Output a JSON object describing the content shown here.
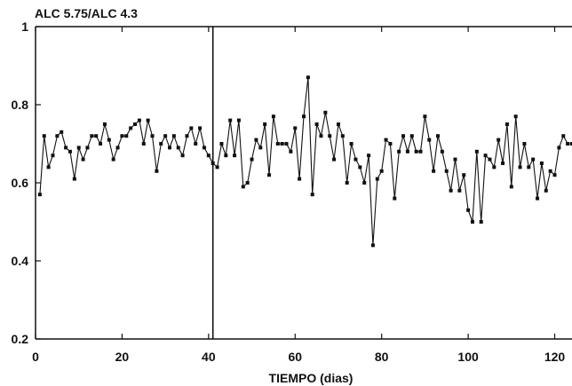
{
  "chart_data": {
    "type": "line",
    "title": "ALC 5.75/ALC 4.3",
    "xlabel": "TIEMPO (dias)",
    "ylabel": "",
    "xlim": [
      0,
      124
    ],
    "ylim": [
      0.2,
      1.0
    ],
    "xticks": [
      0,
      20,
      40,
      60,
      80,
      100,
      120
    ],
    "xtick_labels": [
      "0",
      "20",
      "40",
      "60",
      "80",
      "100",
      "120"
    ],
    "yticks": [
      0.2,
      0.4,
      0.6,
      0.8,
      1.0
    ],
    "ytick_labels": [
      "0.2",
      "0.4",
      "0.6",
      "0.8",
      "1"
    ],
    "vertical_line_x": 41,
    "grid": false,
    "line_color": "#111111",
    "series": [
      {
        "x": [
          1,
          2,
          3,
          4,
          5,
          6,
          7,
          8,
          9,
          10,
          11,
          12,
          13,
          14,
          15,
          16,
          17,
          18,
          19,
          20,
          21,
          22,
          23,
          24,
          25,
          26,
          27,
          28,
          29,
          30,
          31,
          32,
          33,
          34,
          35,
          36,
          37,
          38,
          39,
          40,
          41,
          42,
          43,
          44,
          45,
          46,
          47,
          48,
          49,
          50,
          51,
          52,
          53,
          54,
          55,
          56,
          57,
          58,
          59,
          60,
          61,
          62,
          63,
          64,
          65,
          66,
          67,
          68,
          69,
          70,
          71,
          72,
          73,
          74,
          75,
          76,
          77,
          78,
          79,
          80,
          81,
          82,
          83,
          84,
          85,
          86,
          87,
          88,
          89,
          90,
          91,
          92,
          93,
          94,
          95,
          96,
          97,
          98,
          99,
          100,
          101,
          102,
          103,
          104,
          105,
          106,
          107,
          108,
          109,
          110,
          111,
          112,
          113,
          114,
          115,
          116,
          117,
          118,
          119,
          120,
          121,
          122,
          123,
          124
        ],
        "y": [
          0.57,
          0.72,
          0.64,
          0.67,
          0.72,
          0.73,
          0.69,
          0.68,
          0.61,
          0.69,
          0.66,
          0.69,
          0.72,
          0.72,
          0.7,
          0.75,
          0.71,
          0.66,
          0.69,
          0.72,
          0.72,
          0.74,
          0.75,
          0.76,
          0.7,
          0.76,
          0.72,
          0.63,
          0.7,
          0.72,
          0.69,
          0.72,
          0.69,
          0.67,
          0.72,
          0.74,
          0.7,
          0.74,
          0.69,
          0.67,
          0.65,
          0.64,
          0.7,
          0.67,
          0.76,
          0.67,
          0.76,
          0.59,
          0.6,
          0.66,
          0.71,
          0.69,
          0.75,
          0.62,
          0.77,
          0.7,
          0.7,
          0.7,
          0.68,
          0.74,
          0.61,
          0.77,
          0.87,
          0.57,
          0.75,
          0.72,
          0.78,
          0.72,
          0.66,
          0.75,
          0.72,
          0.6,
          0.7,
          0.66,
          0.64,
          0.6,
          0.67,
          0.44,
          0.61,
          0.63,
          0.71,
          0.7,
          0.56,
          0.68,
          0.72,
          0.68,
          0.72,
          0.68,
          0.68,
          0.77,
          0.71,
          0.63,
          0.72,
          0.68,
          0.63,
          0.58,
          0.66,
          0.58,
          0.62,
          0.53,
          0.5,
          0.68,
          0.5,
          0.67,
          0.66,
          0.64,
          0.71,
          0.65,
          0.75,
          0.59,
          0.77,
          0.64,
          0.7,
          0.64,
          0.66,
          0.56,
          0.65,
          0.58,
          0.63,
          0.62,
          0.69,
          0.72,
          0.7,
          0.7
        ]
      }
    ]
  }
}
